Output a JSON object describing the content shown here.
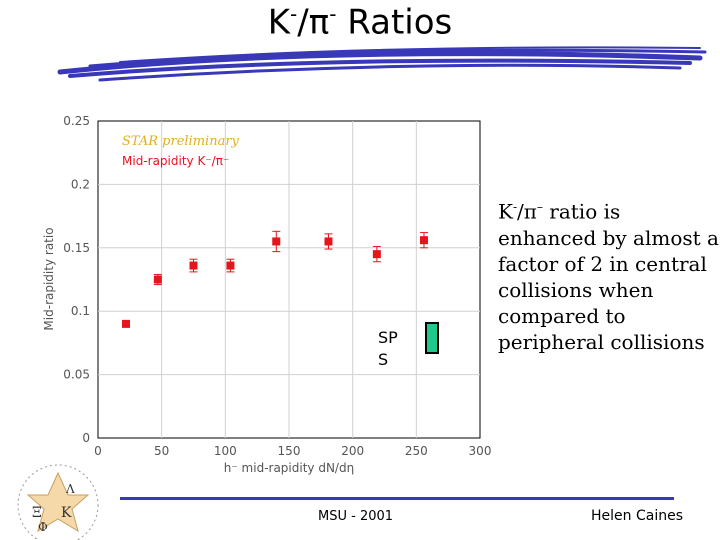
{
  "slide": {
    "title": {
      "k": "K",
      "sup1": "-",
      "slash": "/",
      "pi": "π",
      "sup2": "-",
      "rest": " Ratios"
    },
    "side_text": {
      "k": "K",
      "sup1": "-",
      "slash": "/",
      "pi": "π",
      "sup2": "–",
      "line1_rest": " ratio is",
      "line2": "enhanced by almost a",
      "line3": "factor of 2 in central",
      "line4": "collisions when",
      "line5": "compared to",
      "line6": "peripheral collisions"
    },
    "sps_label_line1": "SP",
    "sps_label_line2": "S",
    "footer_center": "MSU - 2001",
    "footer_right": "Helen Caines",
    "colors": {
      "marker": "#e8141c",
      "error_bar": "#e8141c",
      "sps_box": "#1fc98c",
      "swoosh": "#3838b8",
      "footer_line": "#3838b8"
    },
    "logo_icon": "star-collaboration-logo"
  },
  "chart_data": {
    "type": "scatter",
    "annotation": "STAR preliminary",
    "legend": "Mid-rapidity K⁻/π⁻",
    "xlabel": "h⁻ mid-rapidity dN/dη",
    "ylabel": "Mid-rapidity ratio",
    "xlim": [
      0,
      300
    ],
    "ylim": [
      0,
      0.25
    ],
    "x_ticks": [
      "0",
      "50",
      "100",
      "150",
      "200",
      "250",
      "300"
    ],
    "y_ticks": [
      "0",
      "0.05",
      "0.1",
      "0.15",
      "0.2",
      "0.25"
    ],
    "grid": true,
    "series": [
      {
        "x": [
          22,
          47,
          75,
          104,
          140,
          181,
          219,
          256
        ],
        "y": [
          0.09,
          0.125,
          0.136,
          0.136,
          0.155,
          0.155,
          0.145,
          0.156
        ],
        "yerr": [
          0.002,
          0.004,
          0.005,
          0.005,
          0.008,
          0.006,
          0.006,
          0.006
        ]
      }
    ]
  }
}
